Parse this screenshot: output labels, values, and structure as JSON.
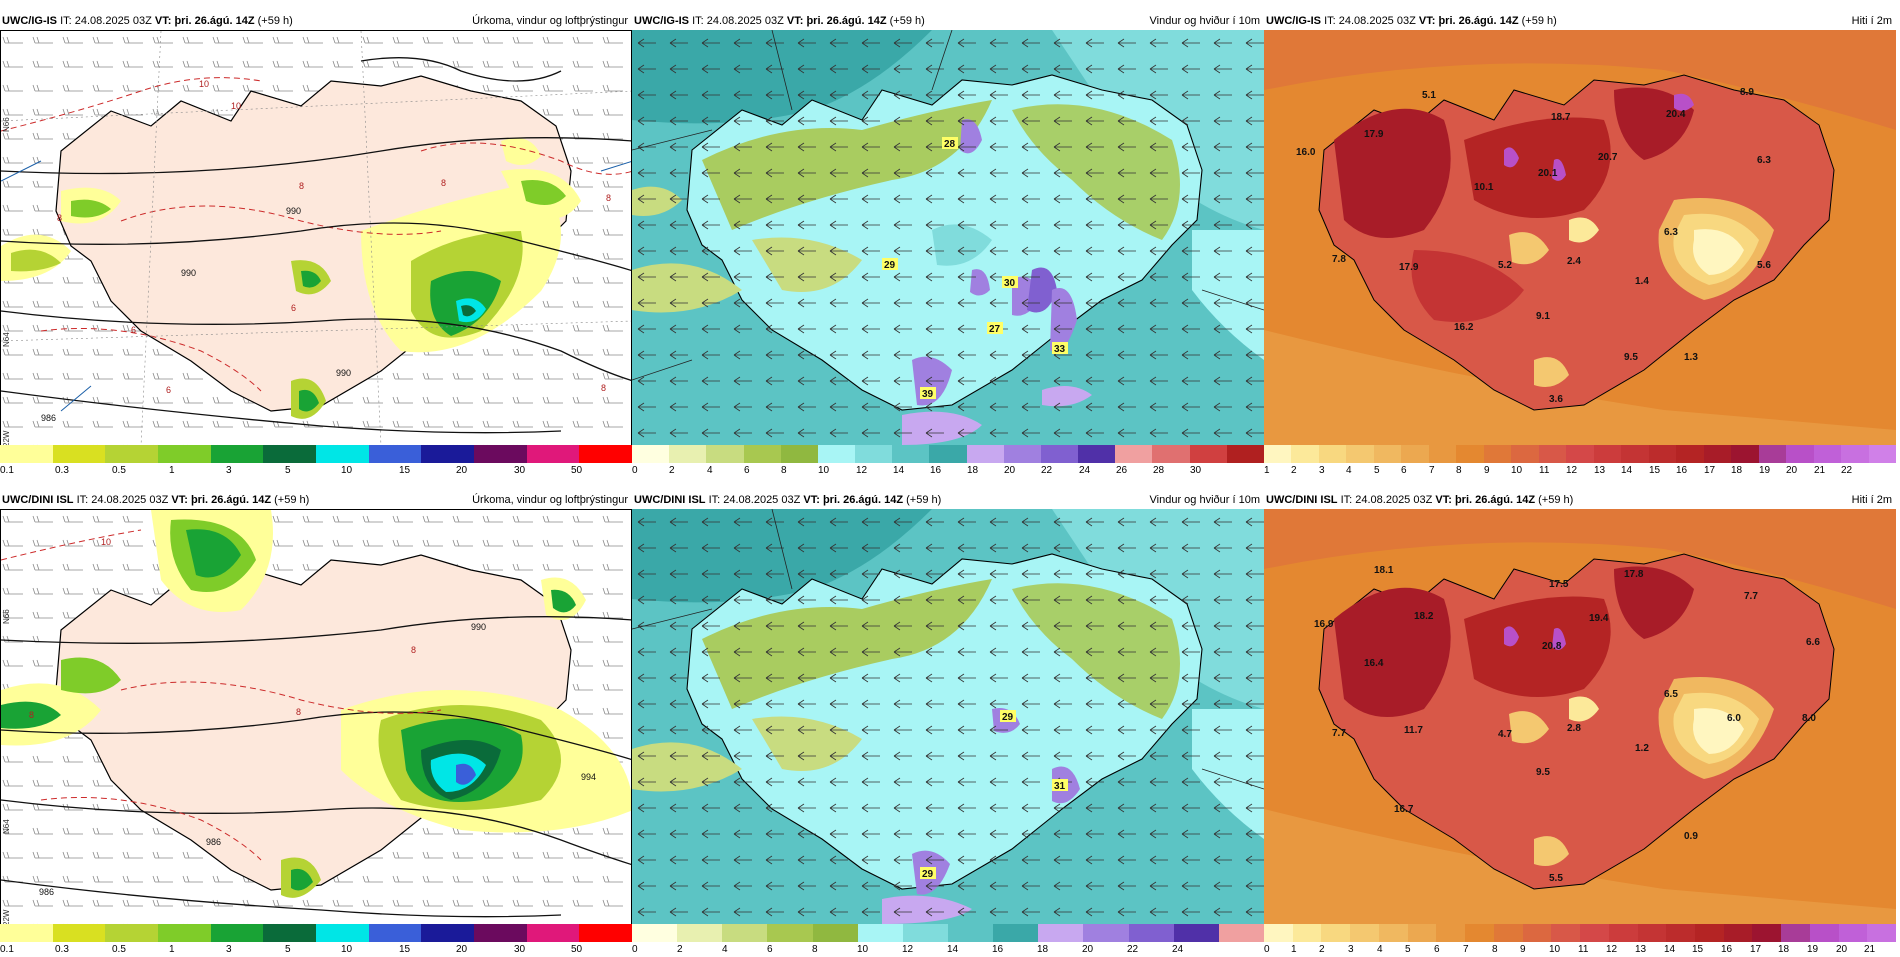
{
  "rows": [
    {
      "model": "UWC/IG-IS",
      "it_label": "IT:",
      "it_value": "24.08.2025 03Z",
      "vt_label": "VT:",
      "vt_value": "þri. 26.ágú. 14Z",
      "lead": "(+59 h)"
    },
    {
      "model": "UWC/DINI ISL",
      "it_label": "IT:",
      "it_value": "24.08.2025 03Z",
      "vt_label": "VT:",
      "vt_value": "þri. 26.ágú. 14Z",
      "lead": "(+59 h)"
    }
  ],
  "panels": {
    "precip_title": "Úrkoma, vindur og loftþrýstingur",
    "wind_title": "Vindur og hviður í 10m",
    "temp_title": "Hiti í 2m"
  },
  "colorbars": {
    "precip": {
      "ticks": [
        "0.1",
        "0.3",
        "0.5",
        "1",
        "3",
        "5",
        "10",
        "15",
        "20",
        "30",
        "50"
      ],
      "colors": [
        "#ffff99",
        "#d9e021",
        "#b5d334",
        "#7fcc29",
        "#19a335",
        "#0a6b3a",
        "#00e6e6",
        "#3a5fd9",
        "#1a1a99",
        "#6b0a5e",
        "#e0187a",
        "#ff0000"
      ]
    },
    "wind_row1": {
      "ticks": [
        "0",
        "2",
        "4",
        "6",
        "8",
        "10",
        "12",
        "14",
        "16",
        "18",
        "20",
        "22",
        "24",
        "26",
        "28",
        "30"
      ],
      "colors": [
        "#ffffe0",
        "#e8f0b0",
        "#c8dc80",
        "#a8c850",
        "#90b840",
        "#a8f5f5",
        "#80dcdc",
        "#5cc4c4",
        "#3aa8a8",
        "#c8a8f0",
        "#a080e0",
        "#8060d0",
        "#5030a8",
        "#f0a0a0",
        "#e07070",
        "#d04040",
        "#b02020"
      ]
    },
    "wind_row2": {
      "ticks": [
        "0",
        "2",
        "4",
        "6",
        "8",
        "10",
        "12",
        "14",
        "16",
        "18",
        "20",
        "22",
        "24"
      ],
      "colors": [
        "#ffffe0",
        "#e8f0b0",
        "#c8dc80",
        "#a8c850",
        "#90b840",
        "#a8f5f5",
        "#80dcdc",
        "#5cc4c4",
        "#3aa8a8",
        "#c8a8f0",
        "#a080e0",
        "#8060d0",
        "#5030a8",
        "#f0a0a0"
      ]
    },
    "temp_row1": {
      "ticks": [
        "1",
        "2",
        "3",
        "4",
        "5",
        "6",
        "7",
        "8",
        "9",
        "10",
        "11",
        "12",
        "13",
        "14",
        "15",
        "16",
        "17",
        "18",
        "19",
        "20",
        "21",
        "22"
      ],
      "colors": [
        "#fff6c0",
        "#fce99a",
        "#f8d880",
        "#f4c870",
        "#f0b860",
        "#eca850",
        "#e89840",
        "#e48830",
        "#e07838",
        "#dc6840",
        "#d85848",
        "#d44848",
        "#cc3c3c",
        "#c43434",
        "#bc2c2c",
        "#b42424",
        "#a81c28",
        "#9c1430",
        "#a83c98",
        "#b850c8",
        "#c060d8",
        "#c870e0",
        "#d080e8"
      ]
    },
    "temp_row2": {
      "ticks": [
        "0",
        "1",
        "2",
        "3",
        "4",
        "5",
        "6",
        "7",
        "8",
        "9",
        "10",
        "11",
        "12",
        "13",
        "14",
        "15",
        "16",
        "17",
        "18",
        "19",
        "20",
        "21"
      ],
      "colors": [
        "#fff6c0",
        "#fce99a",
        "#f8d880",
        "#f4c870",
        "#f0b860",
        "#eca850",
        "#e89840",
        "#e48830",
        "#e07838",
        "#dc6840",
        "#d85848",
        "#d44848",
        "#cc3c3c",
        "#c43434",
        "#bc2c2c",
        "#b42424",
        "#a81c28",
        "#9c1430",
        "#a83c98",
        "#b850c8",
        "#c060d8",
        "#c870e0"
      ]
    }
  },
  "labels": {
    "row1_wind": [
      "28",
      "29",
      "30",
      "27",
      "33",
      "39"
    ],
    "row2_wind": [
      "29",
      "31",
      "29"
    ],
    "row1_temp": [
      "5.1",
      "17.9",
      "16.0",
      "7.8",
      "17.9",
      "10.1",
      "18.7",
      "20.1",
      "20.7",
      "20.4",
      "8.9",
      "6.3",
      "6.3",
      "5.2",
      "2.4",
      "1.4",
      "5.6",
      "9.1",
      "16.2",
      "9.5",
      "1.3",
      "3.6"
    ],
    "row2_temp": [
      "18.1",
      "16.9",
      "18.2",
      "16.4",
      "7.7",
      "11.7",
      "17.5",
      "17.8",
      "19.4",
      "20.8",
      "7.7",
      "6.6",
      "6.5",
      "4.7",
      "2.8",
      "1.2",
      "6.0",
      "8.0",
      "9.5",
      "16.7",
      "0.9",
      "5.5"
    ],
    "isotherm": "8",
    "isotherm2": "10",
    "isotherm3": "6",
    "pressure": [
      "990",
      "990",
      "990",
      "986"
    ],
    "pressure_r2": [
      "990",
      "994",
      "986",
      "986"
    ],
    "lat_labels": [
      "N66",
      "N64",
      "N65",
      "22W"
    ]
  }
}
